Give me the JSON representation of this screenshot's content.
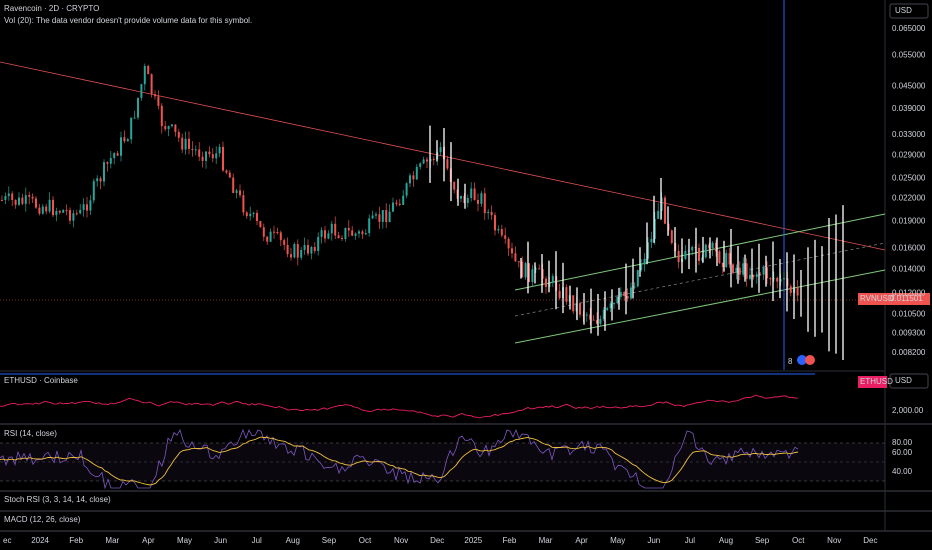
{
  "header": {
    "title": "Ravencoin · 2D · CRYPTO",
    "volume_note": "Vol (20): The data vendor doesn't provide volume data for this symbol.",
    "currency": "USD"
  },
  "price_axis": [
    "0.065000",
    "0.055000",
    "0.045000",
    "0.039000",
    "0.033000",
    "0.029000",
    "0.025000",
    "0.022000",
    "0.019000",
    "0.016000",
    "0.014000",
    "0.012000",
    "0.010500",
    "0.009300",
    "0.008200"
  ],
  "price_tag": {
    "symbol": "RVNUSD",
    "price": "0.011501"
  },
  "marker": "8",
  "eth_pane": {
    "title": "ETHUSD · Coinbase",
    "symbol": "ETHUSD",
    "currency": "USD",
    "axis_label": "2,000.00"
  },
  "rsi_pane": {
    "title": "RSI (14, close)",
    "axis": [
      "80.00",
      "60.00",
      "40.00"
    ]
  },
  "stoch_pane": {
    "title": "Stoch RSI (3, 3, 14, 14, close)"
  },
  "macd_pane": {
    "title": "MACD (12, 26, close)"
  },
  "time_axis": [
    "ec",
    "2024",
    "Feb",
    "Mar",
    "Apr",
    "May",
    "Jun",
    "Jul",
    "Aug",
    "Sep",
    "Oct",
    "Nov",
    "Dec",
    "2025",
    "Feb",
    "Mar",
    "Apr",
    "May",
    "Jun",
    "Jul",
    "Aug",
    "Sep",
    "Oct",
    "Nov",
    "Dec"
  ]
}
